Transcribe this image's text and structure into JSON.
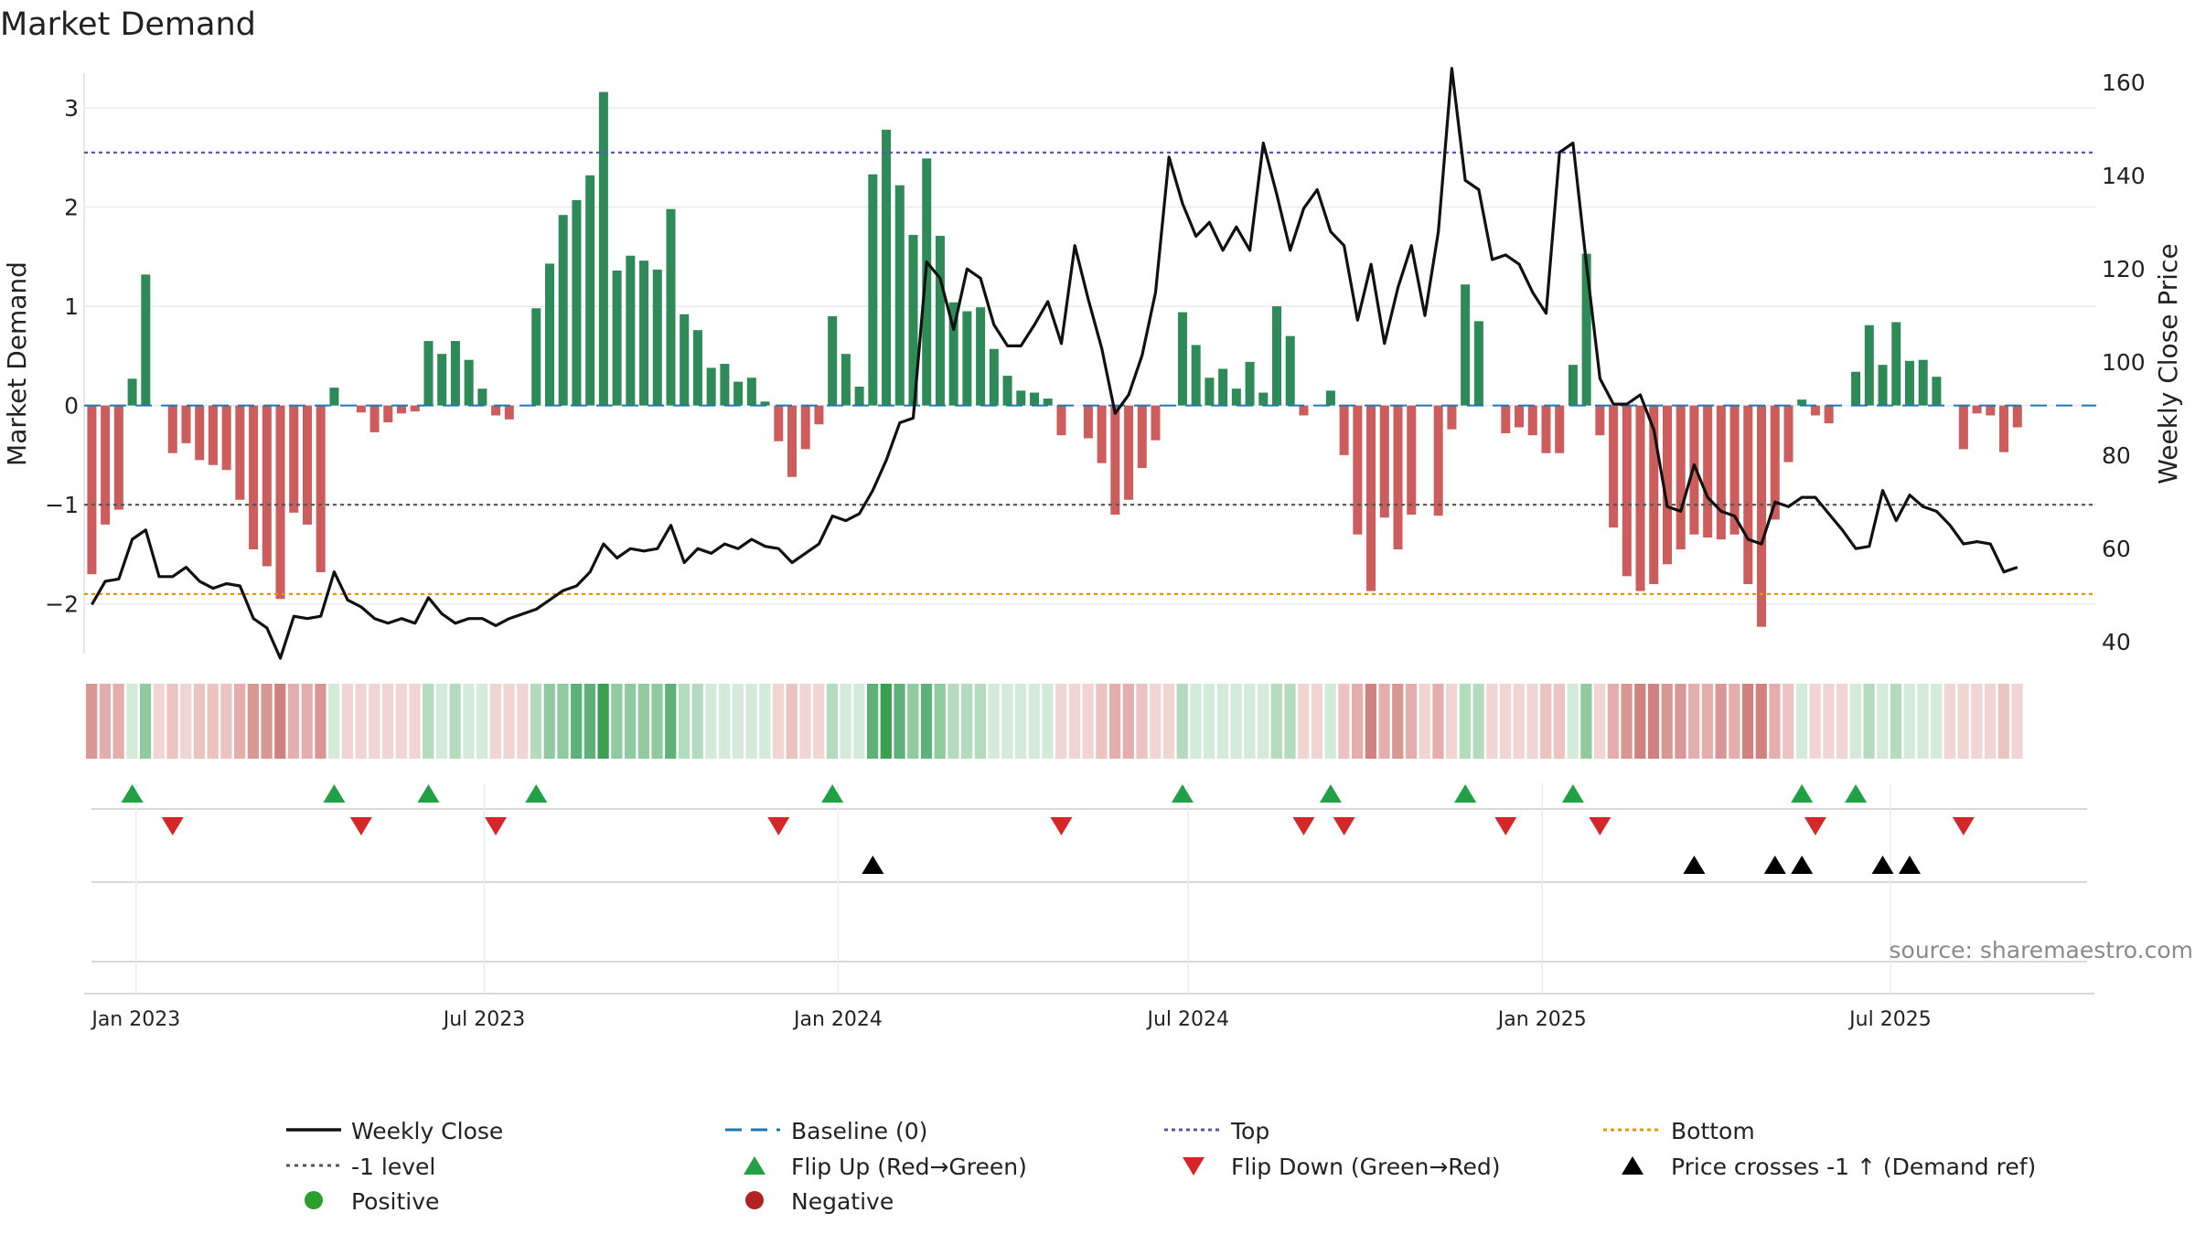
{
  "chart_data": {
    "type": "bar+line",
    "title": "Market Demand",
    "ylabel": "Market Demand",
    "y2label": "Weekly Close Price",
    "ylim": [
      -2.5,
      3.35
    ],
    "y2lim": [
      37.5,
      162
    ],
    "yticks": [
      -2,
      -1,
      0,
      1,
      2,
      3
    ],
    "y2ticks": [
      40,
      60,
      80,
      100,
      120,
      140,
      160
    ],
    "x_range": [
      "2022-12-05",
      "2025-10-16"
    ],
    "xticks": [
      {
        "date": "2023-01-01",
        "label": "Jan 2023"
      },
      {
        "date": "2023-07-01",
        "label": "Jul 2023"
      },
      {
        "date": "2024-01-01",
        "label": "Jan 2024"
      },
      {
        "date": "2024-07-01",
        "label": "Jul 2024"
      },
      {
        "date": "2025-01-01",
        "label": "Jan 2025"
      },
      {
        "date": "2025-07-01",
        "label": "Jul 2025"
      }
    ],
    "start_date": "2022-12-09",
    "interval_days": 7,
    "reference_lines": {
      "top": 2.55,
      "bottom": -1.9,
      "minus_one": -1.0,
      "baseline": 0
    },
    "demand": [
      -1.7,
      -1.2,
      -1.05,
      0.27,
      1.32,
      0,
      -0.48,
      -0.38,
      -0.55,
      -0.6,
      -0.65,
      -0.95,
      -1.45,
      -1.62,
      -1.95,
      -1.08,
      -1.2,
      -1.68,
      0.18,
      0,
      -0.07,
      -0.27,
      -0.17,
      -0.08,
      -0.06,
      0.65,
      0.52,
      0.65,
      0.46,
      0.17,
      -0.1,
      -0.14,
      0,
      0.98,
      1.43,
      1.92,
      2.07,
      2.32,
      3.16,
      1.36,
      1.51,
      1.46,
      1.37,
      1.98,
      0.92,
      0.76,
      0.38,
      0.42,
      0.24,
      0.28,
      0.04,
      -0.36,
      -0.72,
      -0.44,
      -0.19,
      0.9,
      0.52,
      0.19,
      2.33,
      2.78,
      2.22,
      1.72,
      2.49,
      1.71,
      1.04,
      0.95,
      0.99,
      0.57,
      0.3,
      0.15,
      0.13,
      0.07,
      -0.3,
      0,
      -0.33,
      -0.58,
      -1.1,
      -0.95,
      -0.63,
      -0.35,
      0,
      0.94,
      0.61,
      0.28,
      0.37,
      0.17,
      0.44,
      0.13,
      1,
      0.7,
      -0.1,
      0,
      0.15,
      -0.5,
      -1.3,
      -1.87,
      -1.13,
      -1.45,
      -1.1,
      0,
      -1.11,
      -0.24,
      1.22,
      0.85,
      0,
      -0.28,
      -0.22,
      -0.3,
      -0.48,
      -0.48,
      0.41,
      1.53,
      -0.3,
      -1.23,
      -1.72,
      -1.87,
      -1.8,
      -1.6,
      -1.45,
      -1.3,
      -1.33,
      -1.35,
      -1.3,
      -1.8,
      -2.23,
      -1.15,
      -0.57,
      0.06,
      -0.1,
      -0.18,
      0,
      0.34,
      0.81,
      0.41,
      0.84,
      0.45,
      0.46,
      0.29,
      0,
      -0.44,
      -0.08,
      -0.1,
      -0.47,
      -0.22
    ],
    "close": [
      48,
      53,
      53.5,
      62,
      64,
      54,
      54,
      56,
      53,
      51.5,
      52.5,
      52,
      45,
      43,
      36.5,
      45.5,
      45,
      45.5,
      55,
      49,
      47.5,
      45,
      44,
      45,
      44,
      49.5,
      46,
      44,
      45,
      45,
      43.5,
      45,
      46,
      47,
      49,
      51,
      52,
      55,
      61,
      58,
      60,
      59.5,
      60,
      65,
      57,
      60,
      59,
      61,
      60,
      62,
      60.5,
      60,
      57,
      59,
      61,
      67,
      66,
      67.5,
      72.5,
      79,
      87,
      88,
      121.5,
      118,
      107,
      120,
      118,
      108,
      103.5,
      103.5,
      108,
      113,
      104,
      125,
      113.5,
      103,
      89,
      93,
      101.5,
      115,
      144,
      134,
      127,
      130,
      124,
      129,
      124,
      147,
      136,
      124,
      133,
      137,
      128,
      125,
      109,
      121,
      104,
      116,
      125,
      110,
      128,
      163,
      139,
      137,
      122,
      123,
      121,
      115,
      110.5,
      145,
      147,
      121,
      96.5,
      91,
      91,
      93,
      85.5,
      69,
      68,
      78,
      71,
      68,
      67,
      62,
      61,
      70,
      69,
      71,
      71,
      67.5,
      64,
      60,
      60.5,
      72.5,
      66,
      71.5,
      69,
      68,
      65,
      61,
      61.5,
      61,
      55,
      56
    ]
  },
  "legend": {
    "weekly_close": "Weekly Close",
    "baseline": "Baseline (0)",
    "top": "Top",
    "bottom": "Bottom",
    "minus_one": "-1 level",
    "flip_up": "Flip Up (Red→Green)",
    "flip_down": "Flip Down (Green→Red)",
    "price_cross": "Price crosses -1 ↑ (Demand ref)",
    "positive": "Positive",
    "negative": "Negative"
  },
  "source": "source: sharemaestro.com",
  "colors": {
    "positive": "#2e8b57",
    "negative": "#cd5c5c",
    "close_line": "#111111",
    "top_line": "#5b55b8",
    "bottom_line": "#e8940e",
    "minus_one_line": "#555555",
    "baseline": "#1f77b4",
    "flip_up": "#22a045",
    "flip_down": "#d62728",
    "cross": "#000000",
    "legend_positive": "#2ca02c",
    "legend_negative": "#b22222"
  }
}
